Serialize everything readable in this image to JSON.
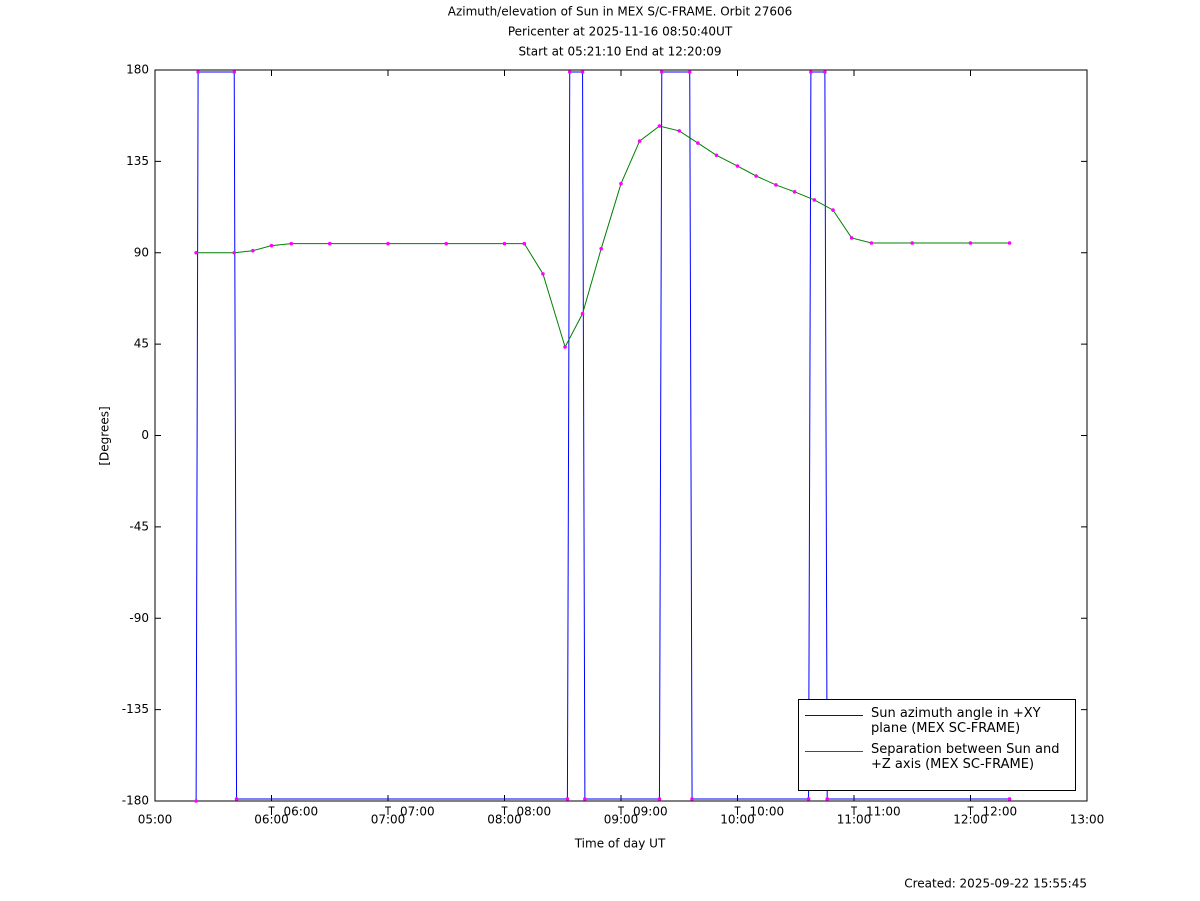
{
  "chart_data": {
    "type": "line",
    "title": [
      "Azimuth/elevation of Sun in MEX S/C-FRAME.  Orbit 27606",
      "Pericenter at 2025-11-16 08:50:40UT",
      "Start at 05:21:10 End at 12:20:09"
    ],
    "x_label": "Time of day UT",
    "y_label": "[Degrees]",
    "footer": "Created: 2025-09-22 15:55:45",
    "xlim": [
      5,
      13
    ],
    "xticks": [
      {
        "value": 5,
        "label": "05:00"
      },
      {
        "value": 6,
        "label": "06:00"
      },
      {
        "value": 7,
        "label": "07:00"
      },
      {
        "value": 8,
        "label": "08:00"
      },
      {
        "value": 9,
        "label": "09:00"
      },
      {
        "value": 10,
        "label": "10:00"
      },
      {
        "value": 11,
        "label": "11:00"
      },
      {
        "value": 12,
        "label": "12:00"
      },
      {
        "value": 13,
        "label": "13:00"
      }
    ],
    "ylim": [
      -180,
      180
    ],
    "yticks": [
      180,
      135,
      90,
      45,
      0,
      -45,
      -90,
      -135,
      -180
    ],
    "annotations": [
      {
        "x": 6,
        "text": "06:00"
      },
      {
        "x": 7,
        "text": "07:00"
      },
      {
        "x": 8,
        "text": "08:00"
      },
      {
        "x": 9,
        "text": "09:00"
      },
      {
        "x": 10,
        "text": "10:00"
      },
      {
        "x": 11,
        "text": "11:00"
      },
      {
        "x": 12,
        "text": "12:00"
      }
    ],
    "marker_color": "#ff00ff",
    "legend": "lower right",
    "series": [
      {
        "name": "Sun azimuth angle in +XY plane (MEX SC-FRAME)",
        "color": "#0000ff",
        "x": [
          5.353,
          5.37,
          5.68,
          5.7,
          8.54,
          8.56,
          8.67,
          8.69,
          9.33,
          9.35,
          9.59,
          9.61,
          10.61,
          10.63,
          10.75,
          10.77,
          12.335
        ],
        "values": [
          -180,
          179,
          179,
          -179,
          -179,
          179,
          179,
          -179,
          -179,
          179,
          179,
          -179,
          -179,
          179,
          179,
          -179,
          -179
        ]
      },
      {
        "name": "Separation between Sun and +Z axis (MEX SC-FRAME)",
        "color": "#008000",
        "x": [
          5.353,
          5.68,
          5.84,
          6.0,
          6.17,
          6.5,
          7.0,
          7.5,
          8.0,
          8.17,
          8.33,
          8.52,
          8.67,
          8.83,
          9.0,
          9.16,
          9.33,
          9.5,
          9.66,
          9.82,
          10.0,
          10.16,
          10.33,
          10.49,
          10.66,
          10.82,
          10.98,
          11.15,
          11.5,
          12.0,
          12.335
        ],
        "values": [
          90,
          90,
          91,
          93.5,
          94.5,
          94.5,
          94.5,
          94.5,
          94.5,
          94.5,
          79.6,
          43.6,
          60,
          92,
          124,
          145,
          152.4,
          150,
          144,
          138,
          132.7,
          127.8,
          123.4,
          120,
          116,
          111,
          97.3,
          94.8,
          94.8,
          94.8,
          94.8
        ]
      }
    ]
  }
}
